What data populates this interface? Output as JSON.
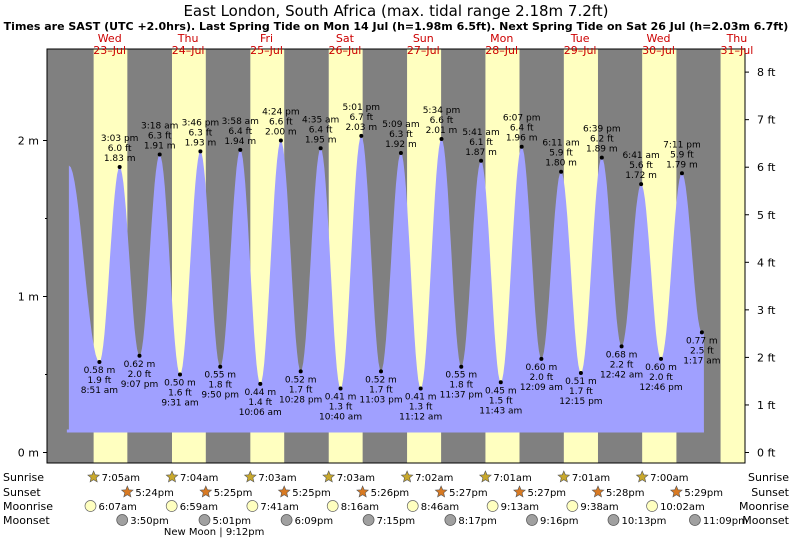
{
  "chart_data": {
    "type": "area",
    "title": "East London, South Africa (max. tidal range 2.18m 7.2ft)",
    "subtitle": "Times are SAST (UTC +2.0hrs). Last Spring Tide on Mon 14 Jul (h=1.98m 6.5ft). Next Spring Tide on Sat 26 Jul (h=2.03m 6.7ft)",
    "days": [
      {
        "dow": "Wed",
        "date": "23–Jul"
      },
      {
        "dow": "Thu",
        "date": "24–Jul"
      },
      {
        "dow": "Fri",
        "date": "25–Jul"
      },
      {
        "dow": "Sat",
        "date": "26–Jul"
      },
      {
        "dow": "Sun",
        "date": "27–Jul"
      },
      {
        "dow": "Mon",
        "date": "28–Jul"
      },
      {
        "dow": "Tue",
        "date": "29–Jul"
      },
      {
        "dow": "Wed",
        "date": "30–Jul"
      },
      {
        "dow": "Thu",
        "date": "31–Jul"
      }
    ],
    "x_range_hours": [
      0,
      219
    ],
    "y_range_m": [
      0,
      2.5
    ],
    "y_left_ticks": [
      "0 m",
      "1 m",
      "2 m"
    ],
    "y_left_tick_values": [
      0,
      1,
      2
    ],
    "y_right_ticks": [
      "0 ft",
      "1 ft",
      "2 ft",
      "3 ft",
      "4 ft",
      "5 ft",
      "6 ft",
      "7 ft",
      "8 ft"
    ],
    "daylight": [
      {
        "sunrise_h": 7.08,
        "sunset_h": 17.4
      },
      {
        "sunrise_h": 7.07,
        "sunset_h": 17.42
      },
      {
        "sunrise_h": 7.05,
        "sunset_h": 17.42
      },
      {
        "sunrise_h": 7.05,
        "sunset_h": 17.43
      },
      {
        "sunrise_h": 7.03,
        "sunset_h": 17.45
      },
      {
        "sunrise_h": 7.02,
        "sunset_h": 17.45
      },
      {
        "sunrise_h": 7.02,
        "sunset_h": 17.47
      },
      {
        "sunrise_h": 7.0,
        "sunset_h": 17.48
      },
      {
        "sunrise_h": 7.0,
        "sunset_h": 17.5
      }
    ],
    "tides": [
      {
        "day": 0,
        "h": 8.85,
        "m": 0.58,
        "type": "low",
        "time": "8:51 am",
        "ft": "1.9 ft",
        "mtxt": "0.58 m"
      },
      {
        "day": 0,
        "h": 15.05,
        "m": 1.83,
        "type": "high",
        "time": "3:03 pm",
        "ft": "6.0 ft",
        "mtxt": "1.83 m"
      },
      {
        "day": 0,
        "h": 21.12,
        "m": 0.62,
        "type": "low",
        "time": "9:07 pm",
        "ft": "2.0 ft",
        "mtxt": "0.62 m"
      },
      {
        "day": 1,
        "h": 3.3,
        "m": 1.91,
        "type": "high",
        "time": "3:18 am",
        "ft": "6.3 ft",
        "mtxt": "1.91 m"
      },
      {
        "day": 1,
        "h": 9.52,
        "m": 0.5,
        "type": "low",
        "time": "9:31 am",
        "ft": "1.6 ft",
        "mtxt": "0.50 m"
      },
      {
        "day": 1,
        "h": 15.77,
        "m": 1.93,
        "type": "high",
        "time": "3:46 pm",
        "ft": "6.3 ft",
        "mtxt": "1.93 m"
      },
      {
        "day": 1,
        "h": 21.83,
        "m": 0.55,
        "type": "low",
        "time": "9:50 pm",
        "ft": "1.8 ft",
        "mtxt": "0.55 m"
      },
      {
        "day": 2,
        "h": 3.97,
        "m": 1.94,
        "type": "high",
        "time": "3:58 am",
        "ft": "6.4 ft",
        "mtxt": "1.94 m"
      },
      {
        "day": 2,
        "h": 10.1,
        "m": 0.44,
        "type": "low",
        "time": "10:06 am",
        "ft": "1.4 ft",
        "mtxt": "0.44 m"
      },
      {
        "day": 2,
        "h": 16.4,
        "m": 2.0,
        "type": "high",
        "time": "4:24 pm",
        "ft": "6.6 ft",
        "mtxt": "2.00 m"
      },
      {
        "day": 2,
        "h": 22.47,
        "m": 0.52,
        "type": "low",
        "time": "10:28 pm",
        "ft": "1.7 ft",
        "mtxt": "0.52 m"
      },
      {
        "day": 3,
        "h": 4.58,
        "m": 1.95,
        "type": "high",
        "time": "4:35 am",
        "ft": "6.4 ft",
        "mtxt": "1.95 m"
      },
      {
        "day": 3,
        "h": 10.67,
        "m": 0.41,
        "type": "low",
        "time": "10:40 am",
        "ft": "1.3 ft",
        "mtxt": "0.41 m"
      },
      {
        "day": 3,
        "h": 17.02,
        "m": 2.03,
        "type": "high",
        "time": "5:01 pm",
        "ft": "6.7 ft",
        "mtxt": "2.03 m"
      },
      {
        "day": 3,
        "h": 23.05,
        "m": 0.52,
        "type": "low",
        "time": "11:03 pm",
        "ft": "1.7 ft",
        "mtxt": "0.52 m"
      },
      {
        "day": 4,
        "h": 5.15,
        "m": 1.92,
        "type": "high",
        "time": "5:09 am",
        "ft": "6.3 ft",
        "mtxt": "1.92 m"
      },
      {
        "day": 4,
        "h": 11.2,
        "m": 0.41,
        "type": "low",
        "time": "11:12 am",
        "ft": "1.3 ft",
        "mtxt": "0.41 m"
      },
      {
        "day": 4,
        "h": 17.57,
        "m": 2.01,
        "type": "high",
        "time": "5:34 pm",
        "ft": "6.6 ft",
        "mtxt": "2.01 m"
      },
      {
        "day": 4,
        "h": 23.62,
        "m": 0.55,
        "type": "low",
        "time": "11:37 pm",
        "ft": "1.8 ft",
        "mtxt": "0.55 m"
      },
      {
        "day": 5,
        "h": 5.68,
        "m": 1.87,
        "type": "high",
        "time": "5:41 am",
        "ft": "6.1 ft",
        "mtxt": "1.87 m"
      },
      {
        "day": 5,
        "h": 11.72,
        "m": 0.45,
        "type": "low",
        "time": "11:43 am",
        "ft": "1.5 ft",
        "mtxt": "0.45 m"
      },
      {
        "day": 5,
        "h": 18.12,
        "m": 1.96,
        "type": "high",
        "time": "6:07 pm",
        "ft": "6.4 ft",
        "mtxt": "1.96 m"
      },
      {
        "day": 6,
        "h": 0.15,
        "m": 0.6,
        "type": "low",
        "time": "12:09 am",
        "ft": "2.0 ft",
        "mtxt": "0.60 m"
      },
      {
        "day": 6,
        "h": 6.18,
        "m": 1.8,
        "type": "high",
        "time": "6:11 am",
        "ft": "5.9 ft",
        "mtxt": "1.80 m"
      },
      {
        "day": 6,
        "h": 12.25,
        "m": 0.51,
        "type": "low",
        "time": "12:15 pm",
        "ft": "1.7 ft",
        "mtxt": "0.51 m"
      },
      {
        "day": 6,
        "h": 18.65,
        "m": 1.89,
        "type": "high",
        "time": "6:39 pm",
        "ft": "6.2 ft",
        "mtxt": "1.89 m"
      },
      {
        "day": 7,
        "h": 0.7,
        "m": 0.68,
        "type": "low",
        "time": "12:42 am",
        "ft": "2.2 ft",
        "mtxt": "0.68 m"
      },
      {
        "day": 7,
        "h": 6.68,
        "m": 1.72,
        "type": "high",
        "time": "6:41 am",
        "ft": "5.6 ft",
        "mtxt": "1.72 m"
      },
      {
        "day": 7,
        "h": 12.77,
        "m": 0.6,
        "type": "low",
        "time": "12:46 pm",
        "ft": "2.0 ft",
        "mtxt": "0.60 m"
      },
      {
        "day": 7,
        "h": 19.18,
        "m": 1.79,
        "type": "high",
        "time": "7:11 pm",
        "ft": "5.9 ft",
        "mtxt": "1.79 m"
      },
      {
        "day": 8,
        "h": 1.28,
        "m": 0.77,
        "type": "low",
        "time": "1:17 am",
        "ft": "2.5 ft",
        "mtxt": "0.77 m"
      }
    ],
    "start_tide": {
      "h": -0.5,
      "m": 1.84
    },
    "rows": {
      "labels": [
        "Sunrise",
        "Sunset",
        "Moonrise",
        "Moonset"
      ],
      "sunrise": [
        "7:05am",
        "7:04am",
        "7:03am",
        "7:03am",
        "7:02am",
        "7:01am",
        "7:01am",
        "7:00am"
      ],
      "sunset": [
        "5:24pm",
        "5:25pm",
        "5:25pm",
        "5:26pm",
        "5:27pm",
        "5:27pm",
        "5:28pm",
        "5:29pm"
      ],
      "moonrise": [
        {
          "h": 6.12,
          "t": "6:07am"
        },
        {
          "h": 30.98,
          "t": "6:59am"
        },
        {
          "h": 55.68,
          "t": "7:41am"
        },
        {
          "h": 80.27,
          "t": "8:16am"
        },
        {
          "h": 104.77,
          "t": "8:46am"
        },
        {
          "h": 129.22,
          "t": "9:13am"
        },
        {
          "h": 153.63,
          "t": "9:38am"
        },
        {
          "h": 178.03,
          "t": "10:02am"
        }
      ],
      "moonset": [
        {
          "h": 15.83,
          "t": "3:50pm"
        },
        {
          "h": 41.02,
          "t": "5:01pm"
        },
        {
          "h": 66.15,
          "t": "6:09pm"
        },
        {
          "h": 91.25,
          "t": "7:15pm"
        },
        {
          "h": 116.28,
          "t": "8:17pm"
        },
        {
          "h": 141.27,
          "t": "9:16pm"
        },
        {
          "h": 166.22,
          "t": "10:13pm"
        },
        {
          "h": 191.15,
          "t": "11:09pm"
        }
      ],
      "new_moon": "New Moon | 9:12pm",
      "new_moon_h": 45.2
    },
    "colors": {
      "night": "#808080",
      "day": "#ffffc0",
      "water": "#a0a0ff",
      "sun": "#c8a82c",
      "sunset": "#d97a22",
      "moonrise": "#ffffc0",
      "moonset": "#a0a0a0",
      "daylabel": "#cc0000"
    }
  }
}
